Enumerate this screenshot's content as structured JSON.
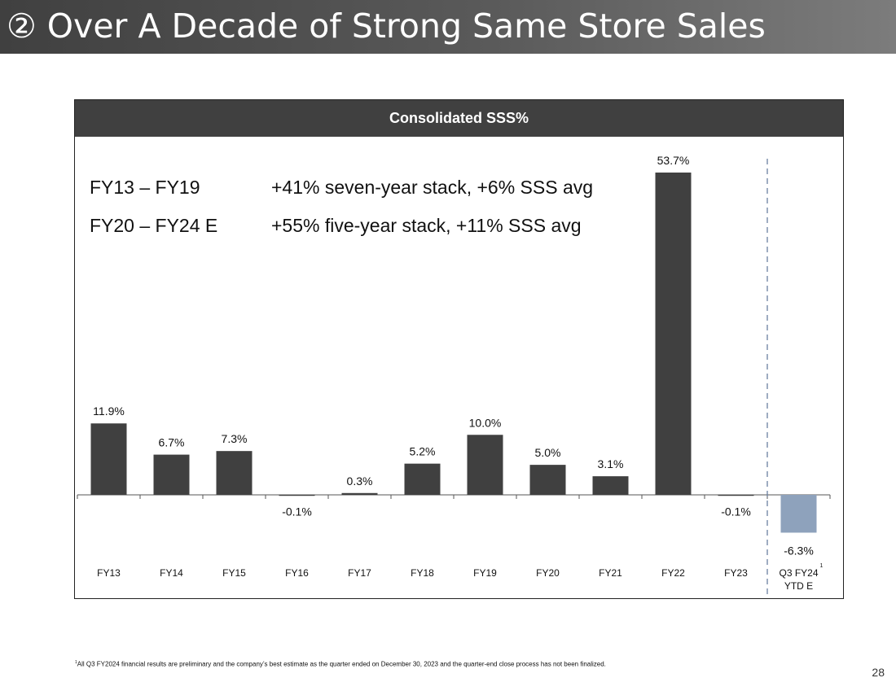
{
  "slide": {
    "title": "② Over A Decade of Strong Same Store Sales",
    "page_number": "28",
    "footnote_marker": "1",
    "footnote": "All Q3 FY2024 financial results are preliminary and the company’s best estimate as the quarter ended on December 30, 2023 and the quarter-end close process has not been finalized."
  },
  "notes": [
    {
      "label": "FY13 – FY19",
      "text": "+41% seven-year stack, +6% SSS avg"
    },
    {
      "label": "FY20 – FY24 E",
      "text": "+55% five-year stack, +11% SSS avg"
    }
  ],
  "chart_data": {
    "type": "bar",
    "title": "Consolidated SSS%",
    "categories": [
      "FY13",
      "FY14",
      "FY15",
      "FY16",
      "FY17",
      "FY18",
      "FY19",
      "FY20",
      "FY21",
      "FY22",
      "FY23",
      "Q3 FY24 YTD E"
    ],
    "category_lines": [
      [
        "FY13"
      ],
      [
        "FY14"
      ],
      [
        "FY15"
      ],
      [
        "FY16"
      ],
      [
        "FY17"
      ],
      [
        "FY18"
      ],
      [
        "FY19"
      ],
      [
        "FY20"
      ],
      [
        "FY21"
      ],
      [
        "FY22"
      ],
      [
        "FY23"
      ],
      [
        "Q3 FY24",
        "YTD E"
      ]
    ],
    "category_superscripts": [
      "",
      "",
      "",
      "",
      "",
      "",
      "",
      "",
      "",
      "",
      "",
      "1"
    ],
    "values": [
      11.9,
      6.7,
      7.3,
      -0.1,
      0.3,
      5.2,
      10.0,
      5.0,
      3.1,
      53.7,
      -0.1,
      -6.3
    ],
    "data_labels": [
      "11.9%",
      "6.7%",
      "7.3%",
      "-0.1%",
      "0.3%",
      "5.2%",
      "10.0%",
      "5.0%",
      "3.1%",
      "53.7%",
      "-0.1%",
      "-6.3%"
    ],
    "colors": [
      "#404040",
      "#404040",
      "#404040",
      "#404040",
      "#404040",
      "#404040",
      "#404040",
      "#404040",
      "#404040",
      "#404040",
      "#404040",
      "#8ea2bc"
    ],
    "divider_after_index": 10,
    "xlabel": "",
    "ylabel": "",
    "ylim": [
      -6.3,
      53.7
    ],
    "grid": false,
    "unit": "%"
  }
}
